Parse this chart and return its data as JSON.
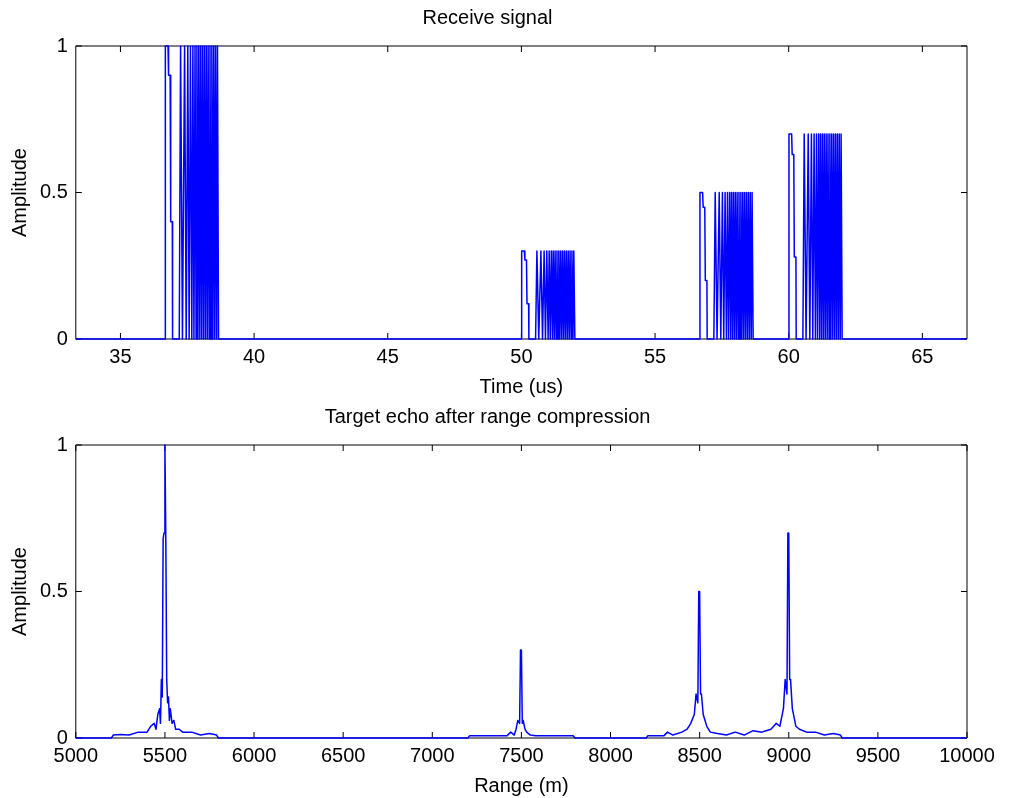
{
  "chart_data": [
    {
      "type": "line",
      "title": "Receive signal",
      "xlabel": "Time (us)",
      "ylabel": "Amplitude",
      "xlim": [
        33.33,
        66.67
      ],
      "xticks": [
        35,
        40,
        45,
        50,
        55,
        60,
        65
      ],
      "ylim": [
        0,
        1
      ],
      "yticks": [
        0,
        0.5,
        1
      ],
      "series": [
        {
          "color": "#0000ff",
          "x": [
            33.33,
            36.67,
            36.68,
            36.78,
            36.8,
            36.86,
            36.88,
            36.94,
            36.95,
            37.2,
            37.25,
            37.32,
            37.4,
            37.46,
            37.52,
            37.57,
            37.62,
            37.67,
            37.71,
            37.75,
            37.79,
            37.83,
            37.86,
            37.9,
            37.93,
            37.97,
            38,
            38.04,
            38.07,
            38.11,
            38.14,
            38.18,
            38.21,
            38.25,
            38.28,
            38.32,
            38.35,
            38.39,
            38.42,
            38.46,
            38.49,
            38.53,
            38.56,
            38.6,
            38.63,
            38.67,
            50,
            50.01,
            50.11,
            50.13,
            50.19,
            50.21,
            50.27,
            50.28,
            50.53,
            50.58,
            50.65,
            50.73,
            50.79,
            50.85,
            50.9,
            50.95,
            51,
            51.04,
            51.08,
            51.12,
            51.16,
            51.19,
            51.23,
            51.26,
            51.3,
            51.33,
            51.37,
            51.4,
            51.44,
            51.47,
            51.51,
            51.54,
            51.58,
            51.61,
            51.65,
            51.68,
            51.72,
            51.75,
            51.79,
            51.82,
            51.86,
            51.89,
            51.93,
            51.96,
            52,
            56.67,
            56.68,
            56.78,
            56.8,
            56.86,
            56.88,
            56.94,
            56.95,
            57.2,
            57.25,
            57.32,
            57.4,
            57.46,
            57.52,
            57.57,
            57.62,
            57.67,
            57.71,
            57.75,
            57.79,
            57.83,
            57.86,
            57.9,
            57.93,
            57.97,
            58,
            58.04,
            58.07,
            58.11,
            58.14,
            58.18,
            58.21,
            58.25,
            58.28,
            58.32,
            58.35,
            58.39,
            58.42,
            58.46,
            58.49,
            58.53,
            58.56,
            58.6,
            58.63,
            58.67,
            60,
            60.01,
            60.11,
            60.13,
            60.19,
            60.21,
            60.27,
            60.28,
            60.53,
            60.58,
            60.65,
            60.73,
            60.79,
            60.85,
            60.9,
            60.95,
            61,
            61.04,
            61.08,
            61.12,
            61.16,
            61.19,
            61.23,
            61.26,
            61.3,
            61.33,
            61.37,
            61.4,
            61.44,
            61.47,
            61.51,
            61.54,
            61.58,
            61.61,
            61.65,
            61.68,
            61.72,
            61.75,
            61.79,
            61.82,
            61.86,
            61.89,
            61.93,
            61.96,
            62,
            66.67
          ],
          "values": [
            0,
            0,
            1,
            1,
            0.9,
            0.9,
            0.4,
            0.4,
            0,
            0,
            1,
            0,
            1,
            0,
            1,
            0,
            1,
            0,
            1,
            0,
            1,
            0,
            1,
            0,
            1,
            0,
            1,
            0,
            1,
            0,
            1,
            0,
            1,
            0,
            1,
            0,
            1,
            0,
            1,
            0,
            1,
            0,
            1,
            0,
            1,
            0,
            0,
            0.3,
            0.3,
            0.27,
            0.27,
            0.12,
            0.12,
            0,
            0,
            0.3,
            0,
            0.3,
            0,
            0.3,
            0,
            0.3,
            0,
            0.3,
            0,
            0.3,
            0,
            0.3,
            0,
            0.3,
            0,
            0.3,
            0,
            0.3,
            0,
            0.3,
            0,
            0.3,
            0,
            0.3,
            0,
            0.3,
            0,
            0.3,
            0,
            0.3,
            0,
            0.3,
            0,
            0.3,
            0,
            0,
            0.5,
            0.5,
            0.45,
            0.45,
            0.2,
            0.2,
            0,
            0,
            0.5,
            0,
            0.5,
            0,
            0.5,
            0,
            0.5,
            0,
            0.5,
            0,
            0.5,
            0,
            0.5,
            0,
            0.5,
            0,
            0.5,
            0,
            0.5,
            0,
            0.5,
            0,
            0.5,
            0,
            0.5,
            0,
            0.5,
            0,
            0.5,
            0,
            0.5,
            0,
            0.5,
            0,
            0.5,
            0,
            0,
            0.7,
            0.7,
            0.63,
            0.63,
            0.28,
            0.28,
            0,
            0,
            0.7,
            0,
            0.7,
            0,
            0.7,
            0,
            0.7,
            0,
            0.7,
            0,
            0.7,
            0,
            0.7,
            0,
            0.7,
            0,
            0.7,
            0,
            0.7,
            0,
            0.7,
            0,
            0.7,
            0,
            0.7,
            0,
            0.7,
            0,
            0.7,
            0,
            0.7,
            0,
            0.7,
            0,
            0.7,
            0,
            0
          ]
        }
      ]
    },
    {
      "type": "line",
      "title": "Target echo after range compression",
      "xlabel": "Range (m)",
      "ylabel": "Amplitude",
      "xlim": [
        5000,
        10000
      ],
      "xticks": [
        5000,
        5500,
        6000,
        6500,
        7000,
        7500,
        8000,
        8500,
        9000,
        9500,
        10000
      ],
      "ylim": [
        0,
        1
      ],
      "yticks": [
        0,
        0.5,
        1
      ],
      "series": [
        {
          "color": "#0000ff",
          "x": [
            5000,
            5200,
            5210,
            5250,
            5300,
            5350,
            5400,
            5420,
            5440,
            5450,
            5460,
            5470,
            5475,
            5480,
            5485,
            5490,
            5495,
            5500,
            5505,
            5510,
            5515,
            5520,
            5525,
            5530,
            5540,
            5550,
            5560,
            5580,
            5600,
            5650,
            5700,
            5750,
            5790,
            5800,
            7200,
            7210,
            7420,
            7440,
            7460,
            7470,
            7480,
            7490,
            7495,
            7500,
            7505,
            7510,
            7520,
            7530,
            7550,
            7580,
            7790,
            7800,
            8200,
            8210,
            8300,
            8320,
            8350,
            8400,
            8430,
            8450,
            8470,
            8480,
            8490,
            8495,
            8500,
            8505,
            8510,
            8520,
            8540,
            8560,
            8600,
            8650,
            8700,
            8750,
            8800,
            8850,
            8900,
            8930,
            8950,
            8970,
            8980,
            8990,
            8995,
            9000,
            9005,
            9010,
            9020,
            9040,
            9060,
            9100,
            9150,
            9200,
            9250,
            9290,
            9300,
            10000
          ],
          "values": [
            0,
            0,
            0.01,
            0.012,
            0.01,
            0.02,
            0.02,
            0.04,
            0.05,
            0.03,
            0.08,
            0.1,
            0.05,
            0.2,
            0.14,
            0.68,
            0.7,
            1,
            0.68,
            0.2,
            0.12,
            0.14,
            0.06,
            0.1,
            0.05,
            0.06,
            0.03,
            0.03,
            0.02,
            0.02,
            0.01,
            0.015,
            0.01,
            0,
            0,
            0.008,
            0.008,
            0.02,
            0.01,
            0.03,
            0.06,
            0.05,
            0.3,
            0.3,
            0.05,
            0.06,
            0.03,
            0.02,
            0.01,
            0.008,
            0.008,
            0,
            0,
            0.008,
            0.008,
            0.02,
            0.01,
            0.02,
            0.03,
            0.05,
            0.08,
            0.15,
            0.12,
            0.5,
            0.5,
            0.15,
            0.15,
            0.08,
            0.04,
            0.02,
            0.015,
            0.01,
            0.02,
            0.01,
            0.025,
            0.02,
            0.03,
            0.05,
            0.04,
            0.1,
            0.2,
            0.15,
            0.7,
            0.7,
            0.2,
            0.2,
            0.1,
            0.04,
            0.03,
            0.02,
            0.02,
            0.01,
            0.015,
            0.01,
            0,
            0
          ]
        }
      ]
    }
  ]
}
